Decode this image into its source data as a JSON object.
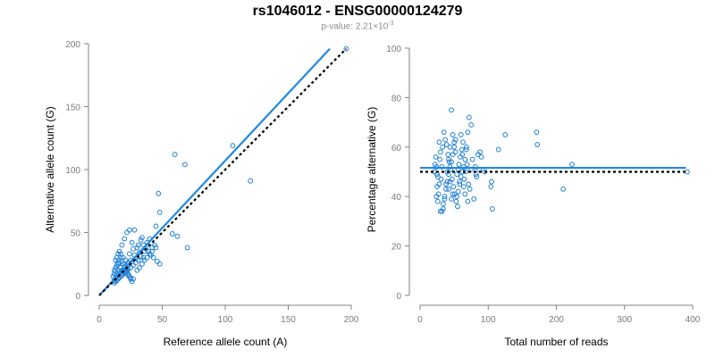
{
  "title": "rs1046012 - ENSG00000124279",
  "subtitle": {
    "prefix": "p-value: 2.21×10",
    "exponent": "-3"
  },
  "colors": {
    "points": "#1e7fd4",
    "fit": "#1e88e5",
    "reference": "#000000",
    "axis": "#808080"
  },
  "chart_data": [
    {
      "type": "scatter",
      "xlabel": "Reference allele count (A)",
      "ylabel": "Alternative allele count (G)",
      "xlim": [
        0,
        200
      ],
      "ylim": [
        0,
        200
      ],
      "xticks": [
        "0",
        "50",
        "100",
        "150",
        "200"
      ],
      "yticks": [
        "0",
        "50",
        "100",
        "150",
        "200"
      ],
      "fit_line": {
        "x": [
          0,
          183
        ],
        "y": [
          0,
          196
        ]
      },
      "reference_line": {
        "x": [
          0,
          196
        ],
        "y": [
          0,
          196
        ]
      },
      "points": [
        [
          196,
          196
        ],
        [
          120,
          91
        ],
        [
          106,
          119
        ],
        [
          60,
          112
        ],
        [
          68,
          104
        ],
        [
          70,
          38
        ],
        [
          47,
          81
        ],
        [
          48,
          66
        ],
        [
          45,
          55
        ],
        [
          62,
          47
        ],
        [
          58,
          49
        ],
        [
          45,
          38
        ],
        [
          46,
          27
        ],
        [
          48,
          25
        ],
        [
          40,
          45
        ],
        [
          38,
          42
        ],
        [
          42,
          38
        ],
        [
          36,
          35
        ],
        [
          35,
          30
        ],
        [
          32,
          34
        ],
        [
          30,
          30
        ],
        [
          28,
          32
        ],
        [
          25,
          28
        ],
        [
          22,
          24
        ],
        [
          20,
          22
        ],
        [
          18,
          20
        ],
        [
          16,
          18
        ],
        [
          14,
          16
        ],
        [
          13,
          14
        ],
        [
          12,
          12
        ],
        [
          24,
          52
        ],
        [
          28,
          52
        ],
        [
          22,
          50
        ],
        [
          20,
          45
        ],
        [
          18,
          40
        ],
        [
          16,
          35
        ],
        [
          15,
          33
        ],
        [
          14,
          30
        ],
        [
          13,
          28
        ],
        [
          15,
          25
        ],
        [
          17,
          22
        ],
        [
          19,
          20
        ],
        [
          21,
          18
        ],
        [
          23,
          16
        ],
        [
          25,
          14
        ],
        [
          27,
          13
        ],
        [
          30,
          20
        ],
        [
          32,
          22
        ],
        [
          34,
          25
        ],
        [
          36,
          28
        ],
        [
          38,
          30
        ],
        [
          40,
          33
        ],
        [
          42,
          35
        ],
        [
          44,
          40
        ],
        [
          30,
          38
        ],
        [
          31,
          40
        ],
        [
          33,
          44
        ],
        [
          34,
          46
        ],
        [
          26,
          42
        ],
        [
          27,
          37
        ],
        [
          24,
          33
        ],
        [
          12,
          20
        ],
        [
          13,
          22
        ],
        [
          14,
          24
        ],
        [
          15,
          26
        ],
        [
          16,
          28
        ],
        [
          17,
          30
        ],
        [
          18,
          27
        ],
        [
          19,
          25
        ],
        [
          20,
          23
        ],
        [
          21,
          21
        ],
        [
          22,
          19
        ],
        [
          23,
          17
        ],
        [
          24,
          15
        ],
        [
          25,
          13
        ],
        [
          26,
          11
        ],
        [
          12,
          10
        ],
        [
          13,
          11
        ],
        [
          14,
          12
        ],
        [
          15,
          13
        ],
        [
          16,
          14
        ],
        [
          17,
          15
        ],
        [
          18,
          16
        ],
        [
          19,
          17
        ],
        [
          20,
          18
        ],
        [
          21,
          19
        ],
        [
          22,
          20
        ],
        [
          23,
          21
        ],
        [
          11,
          15
        ],
        [
          12,
          17
        ],
        [
          13,
          19
        ],
        [
          35,
          40
        ],
        [
          37,
          37
        ],
        [
          39,
          35
        ],
        [
          41,
          32
        ],
        [
          43,
          30
        ],
        [
          29,
          26
        ],
        [
          31,
          28
        ],
        [
          33,
          31
        ],
        [
          27,
          24
        ],
        [
          25,
          22
        ],
        [
          23,
          26
        ],
        [
          21,
          28
        ],
        [
          19,
          30
        ],
        [
          17,
          33
        ],
        [
          15,
          20
        ]
      ]
    },
    {
      "type": "scatter",
      "xlabel": "Total number of reads",
      "ylabel": "Percentage alternative (G)",
      "xlim": [
        0,
        400
      ],
      "ylim": [
        0,
        100
      ],
      "xticks": [
        "0",
        "100",
        "200",
        "300",
        "400"
      ],
      "yticks": [
        "0",
        "20",
        "40",
        "60",
        "80",
        "100"
      ],
      "fit_line": {
        "x": [
          0,
          390
        ],
        "y": [
          51.6,
          51.6
        ]
      },
      "reference_line": {
        "x": [
          0,
          390
        ],
        "y": [
          50,
          50
        ]
      },
      "points": [
        [
          392,
          50
        ],
        [
          223,
          53
        ],
        [
          210,
          43
        ],
        [
          171,
          66
        ],
        [
          172,
          61
        ],
        [
          125,
          65
        ],
        [
          115,
          59
        ],
        [
          105,
          46
        ],
        [
          104,
          44
        ],
        [
          106,
          35
        ],
        [
          95,
          50
        ],
        [
          90,
          56
        ],
        [
          88,
          58
        ],
        [
          82,
          49
        ],
        [
          75,
          69
        ],
        [
          72,
          72
        ],
        [
          70,
          66
        ],
        [
          68,
          60
        ],
        [
          66,
          55
        ],
        [
          64,
          52
        ],
        [
          62,
          50
        ],
        [
          60,
          48
        ],
        [
          58,
          45
        ],
        [
          56,
          42
        ],
        [
          54,
          40
        ],
        [
          52,
          58
        ],
        [
          50,
          62
        ],
        [
          48,
          65
        ],
        [
          46,
          75
        ],
        [
          44,
          60
        ],
        [
          42,
          55
        ],
        [
          40,
          50
        ],
        [
          38,
          45
        ],
        [
          36,
          40
        ],
        [
          34,
          35
        ],
        [
          32,
          52
        ],
        [
          30,
          58
        ],
        [
          28,
          62
        ],
        [
          26,
          48
        ],
        [
          25,
          44
        ],
        [
          24,
          40
        ],
        [
          23,
          56
        ],
        [
          22,
          53
        ],
        [
          21,
          50
        ],
        [
          35,
          66
        ],
        [
          37,
          63
        ],
        [
          39,
          61
        ],
        [
          41,
          57
        ],
        [
          43,
          54
        ],
        [
          45,
          51
        ],
        [
          47,
          47
        ],
        [
          49,
          44
        ],
        [
          51,
          41
        ],
        [
          53,
          38
        ],
        [
          55,
          36
        ],
        [
          57,
          53
        ],
        [
          59,
          56
        ],
        [
          61,
          59
        ],
        [
          63,
          62
        ],
        [
          30,
          34
        ],
        [
          32,
          34
        ],
        [
          34,
          37
        ],
        [
          36,
          39
        ],
        [
          38,
          43
        ],
        [
          40,
          46
        ],
        [
          42,
          49
        ],
        [
          44,
          52
        ],
        [
          46,
          54
        ],
        [
          48,
          57
        ],
        [
          50,
          60
        ],
        [
          52,
          63
        ],
        [
          54,
          49
        ],
        [
          56,
          51
        ],
        [
          58,
          46
        ],
        [
          65,
          47
        ],
        [
          67,
          50
        ],
        [
          69,
          53
        ],
        [
          71,
          45
        ],
        [
          73,
          43
        ],
        [
          75,
          51
        ],
        [
          77,
          55
        ],
        [
          79,
          39
        ],
        [
          81,
          52
        ],
        [
          83,
          48
        ],
        [
          85,
          57
        ],
        [
          87,
          51
        ],
        [
          28,
          45
        ],
        [
          29,
          55
        ],
        [
          31,
          47
        ],
        [
          33,
          60
        ],
        [
          26,
          38
        ],
        [
          27,
          41
        ],
        [
          24,
          52
        ],
        [
          25,
          49
        ],
        [
          42,
          43
        ],
        [
          44,
          46
        ],
        [
          46,
          39
        ],
        [
          48,
          41
        ],
        [
          60,
          65
        ],
        [
          62,
          57
        ],
        [
          64,
          44
        ],
        [
          66,
          41
        ],
        [
          68,
          59
        ],
        [
          70,
          38
        ]
      ]
    }
  ]
}
